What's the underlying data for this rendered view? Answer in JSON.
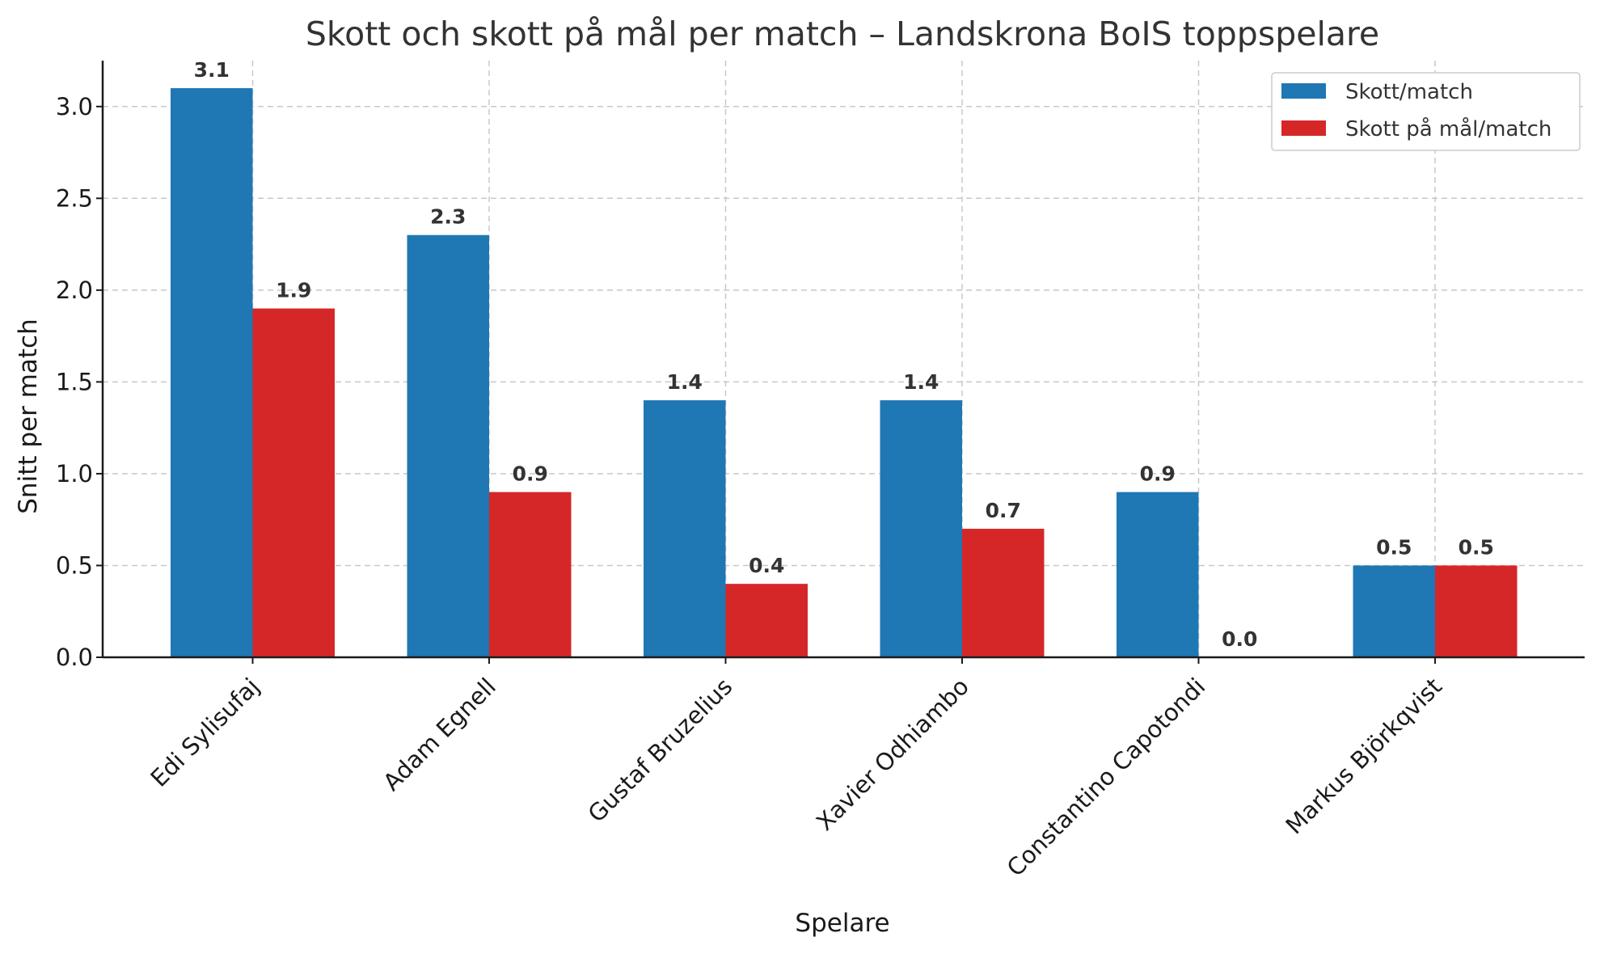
{
  "chart_data": {
    "type": "bar",
    "title": "Skott och skott på mål per match – Landskrona BoIS toppspelare",
    "xlabel": "Spelare",
    "ylabel": "Snitt per match",
    "categories": [
      "Edi Sylisufaj",
      "Adam Egnell",
      "Gustaf Bruzelius",
      "Xavier Odhiambo",
      "Constantino Capotondi",
      "Markus Björkqvist"
    ],
    "series": [
      {
        "name": "Skott/match",
        "color": "#1f77b4",
        "values": [
          3.1,
          2.3,
          1.4,
          1.4,
          0.9,
          0.5
        ]
      },
      {
        "name": "Skott på mål/match",
        "color": "#d62728",
        "values": [
          1.9,
          0.9,
          0.4,
          0.7,
          0.0,
          0.5
        ]
      }
    ],
    "ylim": [
      0,
      3.25
    ],
    "yticks": [
      0.0,
      0.5,
      1.0,
      1.5,
      2.0,
      2.5,
      3.0
    ],
    "grid": true,
    "legend_position": "top-right"
  }
}
